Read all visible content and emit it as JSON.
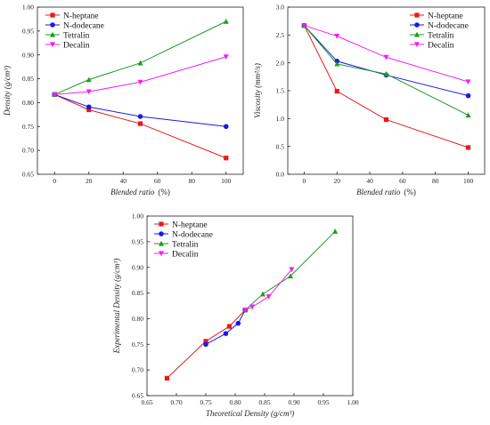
{
  "chart_data": [
    {
      "type": "line",
      "ylabel": "Density (g/cm³)",
      "xlabel_main": "Blended ratio",
      "xlabel_unit": "(%)",
      "xlim": [
        -10,
        110
      ],
      "ylim": [
        0.65,
        1.0
      ],
      "xticks": [
        0,
        20,
        40,
        60,
        80,
        100
      ],
      "yticks": [
        0.65,
        0.7,
        0.75,
        0.8,
        0.85,
        0.9,
        0.95,
        1.0
      ],
      "ytick_decimals": 2,
      "legend_position": "top-left",
      "series": [
        {
          "name": "N-heptane",
          "color": "#e8191b",
          "marker": "square",
          "x": [
            0,
            20,
            50,
            100
          ],
          "y": [
            0.817,
            0.785,
            0.756,
            0.684
          ]
        },
        {
          "name": "N-dodecane",
          "color": "#1a1ae6",
          "marker": "circle",
          "x": [
            0,
            20,
            50,
            100
          ],
          "y": [
            0.817,
            0.791,
            0.771,
            0.75
          ]
        },
        {
          "name": "Tetralin",
          "color": "#1f9a1f",
          "marker": "triangle-up",
          "x": [
            0,
            20,
            50,
            100
          ],
          "y": [
            0.817,
            0.848,
            0.883,
            0.97
          ]
        },
        {
          "name": "Decalin",
          "color": "#ee22ee",
          "marker": "triangle-down",
          "x": [
            0,
            20,
            50,
            100
          ],
          "y": [
            0.817,
            0.823,
            0.843,
            0.896
          ]
        }
      ]
    },
    {
      "type": "line",
      "ylabel": "Viscosity (mm²/s)",
      "xlabel_main": "Blended ratio",
      "xlabel_unit": "(%)",
      "xlim": [
        -10,
        110
      ],
      "ylim": [
        0.0,
        3.0
      ],
      "xticks": [
        0,
        20,
        40,
        60,
        80,
        100
      ],
      "yticks": [
        0.0,
        0.5,
        1.0,
        1.5,
        2.0,
        2.5,
        3.0
      ],
      "ytick_decimals": 1,
      "legend_position": "top-right",
      "series": [
        {
          "name": "N-heptane",
          "color": "#e8191b",
          "marker": "square",
          "x": [
            0,
            20,
            50,
            100
          ],
          "y": [
            2.67,
            1.49,
            0.98,
            0.48
          ]
        },
        {
          "name": "N-dodecane",
          "color": "#1a1ae6",
          "marker": "circle",
          "x": [
            0,
            20,
            50,
            100
          ],
          "y": [
            2.67,
            2.03,
            1.78,
            1.41
          ]
        },
        {
          "name": "Tetralin",
          "color": "#1f9a1f",
          "marker": "triangle-up",
          "x": [
            0,
            20,
            50,
            100
          ],
          "y": [
            2.67,
            1.98,
            1.8,
            1.06
          ]
        },
        {
          "name": "Decalin",
          "color": "#ee22ee",
          "marker": "triangle-down",
          "x": [
            0,
            20,
            50,
            100
          ],
          "y": [
            2.67,
            2.48,
            2.1,
            1.66
          ]
        }
      ]
    },
    {
      "type": "line",
      "ylabel": "Experimental Density (g/cm³)",
      "xlabel_main": "Theoretical Density (g/cm³)",
      "xlabel_unit": "",
      "xlim": [
        0.65,
        1.0
      ],
      "ylim": [
        0.65,
        1.0
      ],
      "xticks": [
        0.65,
        0.7,
        0.75,
        0.8,
        0.85,
        0.9,
        0.95,
        1.0
      ],
      "yticks": [
        0.65,
        0.7,
        0.75,
        0.8,
        0.85,
        0.9,
        0.95,
        1.0
      ],
      "xtick_decimals": 2,
      "ytick_decimals": 2,
      "legend_position": "top-left",
      "series": [
        {
          "name": "N-heptane",
          "color": "#e8191b",
          "marker": "square",
          "x": [
            0.684,
            0.75,
            0.79,
            0.817
          ],
          "y": [
            0.684,
            0.756,
            0.785,
            0.817
          ]
        },
        {
          "name": "N-dodecane",
          "color": "#1a1ae6",
          "marker": "circle",
          "x": [
            0.75,
            0.784,
            0.805,
            0.817
          ],
          "y": [
            0.75,
            0.771,
            0.791,
            0.817
          ]
        },
        {
          "name": "Tetralin",
          "color": "#1f9a1f",
          "marker": "triangle-up",
          "x": [
            0.817,
            0.847,
            0.894,
            0.97
          ],
          "y": [
            0.817,
            0.848,
            0.883,
            0.97
          ]
        },
        {
          "name": "Decalin",
          "color": "#ee22ee",
          "marker": "triangle-down",
          "x": [
            0.817,
            0.829,
            0.857,
            0.896
          ],
          "y": [
            0.817,
            0.823,
            0.843,
            0.896
          ]
        }
      ]
    }
  ]
}
